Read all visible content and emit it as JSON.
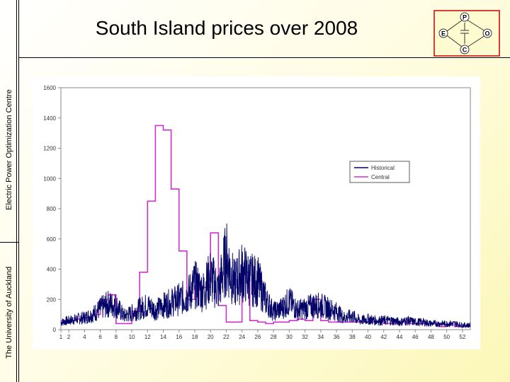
{
  "slide": {
    "title": "South Island prices over 2008",
    "sidebar_top": "Electric Power Optimization Centre",
    "sidebar_bottom": "The University of Auckland"
  },
  "logo": {
    "icon": "epoc-logo-icon",
    "letters": {
      "top": "P",
      "left": "E",
      "right": "O",
      "bottom": "C"
    },
    "color": "#cc0000"
  },
  "chart_data": {
    "type": "line",
    "title": "",
    "xlabel": "",
    "ylabel": "",
    "ylim": [
      0,
      1600
    ],
    "xlim": [
      1,
      53
    ],
    "yticks": [
      "0",
      "200",
      "400",
      "600",
      "800",
      "1000",
      "1200",
      "1400",
      "1600"
    ],
    "xticks": [
      "1",
      "2",
      "4",
      "6",
      "8",
      "10",
      "12",
      "14",
      "16",
      "18",
      "20",
      "22",
      "24",
      "26",
      "28",
      "30",
      "32",
      "34",
      "36",
      "38",
      "40",
      "42",
      "44",
      "46",
      "48",
      "50",
      "52"
    ],
    "grid": false,
    "legend_position": "center-right",
    "series": [
      {
        "name": "Historical",
        "color": "#000066",
        "x": [
          1,
          2,
          3,
          4,
          5,
          6,
          7,
          8,
          9,
          10,
          11,
          12,
          13,
          14,
          15,
          16,
          17,
          18,
          19,
          20,
          21,
          22,
          23,
          24,
          25,
          26,
          27,
          28,
          29,
          30,
          31,
          32,
          33,
          34,
          35,
          36,
          37,
          38,
          39,
          40,
          41,
          42,
          43,
          44,
          45,
          46,
          47,
          48,
          49,
          50,
          51,
          52,
          53
        ],
        "values": [
          50,
          60,
          70,
          80,
          100,
          140,
          170,
          160,
          90,
          110,
          140,
          160,
          130,
          160,
          180,
          200,
          220,
          300,
          250,
          350,
          260,
          480,
          300,
          380,
          330,
          320,
          200,
          120,
          140,
          190,
          130,
          140,
          160,
          160,
          140,
          120,
          80,
          90,
          60,
          70,
          60,
          60,
          60,
          50,
          60,
          50,
          50,
          40,
          40,
          40,
          40,
          30,
          30
        ]
      },
      {
        "name": "Central",
        "color": "#cc33cc",
        "x": [
          1,
          2,
          3,
          4,
          5,
          6,
          7,
          8,
          9,
          10,
          11,
          12,
          13,
          14,
          15,
          16,
          17,
          18,
          19,
          20,
          21,
          22,
          23,
          24,
          25,
          26,
          27,
          28,
          29,
          30,
          31,
          32,
          33,
          34,
          35,
          36,
          37,
          38,
          39,
          40,
          41,
          42,
          43,
          44,
          45,
          46,
          47,
          48,
          49,
          50,
          51,
          52,
          53
        ],
        "values": [
          60,
          60,
          70,
          80,
          100,
          200,
          230,
          40,
          40,
          120,
          380,
          850,
          1350,
          1320,
          930,
          520,
          200,
          290,
          280,
          640,
          160,
          50,
          50,
          380,
          60,
          50,
          40,
          50,
          50,
          60,
          70,
          60,
          200,
          60,
          50,
          50,
          50,
          50,
          50,
          50,
          50,
          40,
          40,
          50,
          40,
          40,
          40,
          40,
          20,
          30,
          20,
          20,
          20
        ]
      }
    ]
  }
}
